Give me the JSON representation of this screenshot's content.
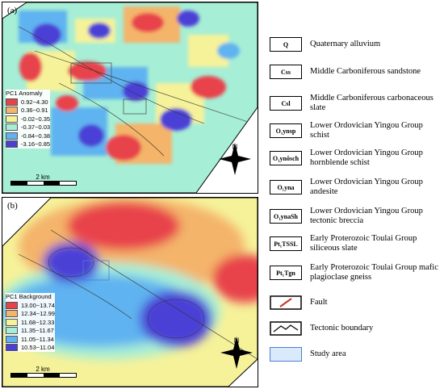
{
  "panel_a": {
    "label": "(a)",
    "legend_title": "PC1 Anomaly",
    "legend": [
      {
        "label": "0.92~4.30",
        "color": "#e8434b"
      },
      {
        "label": "0.36~0.91",
        "color": "#f4b46a"
      },
      {
        "label": "-0.02~0.35",
        "color": "#f6f29a"
      },
      {
        "label": "-0.37~0.03",
        "color": "#a6eed6"
      },
      {
        "label": "-0.84~0.38",
        "color": "#5fb3f0"
      },
      {
        "label": "-3.16~0.85",
        "color": "#4b40d6"
      }
    ],
    "scale": "2 km",
    "north": "N"
  },
  "panel_b": {
    "label": "(b)",
    "legend_title": "PC1 Background",
    "legend": [
      {
        "label": "13.00~13.74",
        "color": "#e8434b"
      },
      {
        "label": "12.34~12.99",
        "color": "#f4b46a"
      },
      {
        "label": "11.68~12.33",
        "color": "#f6f29a"
      },
      {
        "label": "11.35~11.67",
        "color": "#a6eed6"
      },
      {
        "label": "11.05~11.34",
        "color": "#5fb3f0"
      },
      {
        "label": "10.53~11.04",
        "color": "#4b40d6"
      }
    ],
    "scale": "2 km",
    "north": "N"
  },
  "key": [
    {
      "symbol": "Q",
      "text": "Quaternary alluvium"
    },
    {
      "symbol": "Css",
      "text": "Middle Carboniferous sandstone"
    },
    {
      "symbol": "Csl",
      "text": "Middle Carboniferous carbonaceous slate"
    },
    {
      "symbol": "O₁ynsp",
      "text": "Lower Ordovician Yingou Group schist"
    },
    {
      "symbol": "O₁ynôsch",
      "text": "Lower Ordovician Yingou Group hornblende schist"
    },
    {
      "symbol": "O₁yna",
      "text": "Lower Ordovician Yingou Group andesite"
    },
    {
      "symbol": "O₁ynaSh",
      "text": "Lower Ordovician Yingou Group tectonic breccia"
    },
    {
      "symbol": "Pt₁TSSL",
      "text": "Early Proterozoic Toulai Group siliceous slate"
    },
    {
      "symbol": "Pt₁Tgn",
      "text": "Early Proterozoic Toulai Group mafic plagioclase gneiss"
    },
    {
      "symbol": "fault-line-icon",
      "text": "Fault"
    },
    {
      "symbol": "tectonic-boundary-icon",
      "text": "Tectonic boundary"
    },
    {
      "symbol": "study-area-icon",
      "text": "Study area"
    }
  ]
}
